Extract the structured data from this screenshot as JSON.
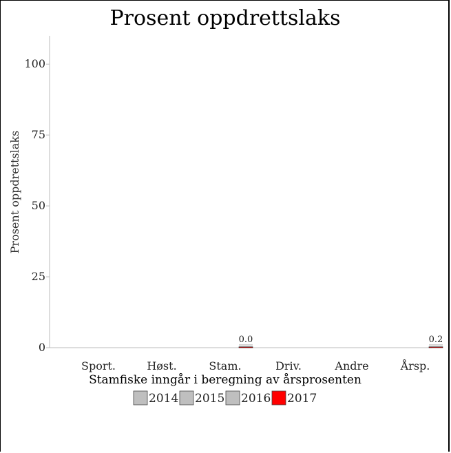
{
  "chart_data": {
    "type": "bar",
    "title": "Prosent oppdrettslaks",
    "ylabel": "Prosent oppdrettslaks",
    "caption": "Stamfiske inngår i beregning av årsprosenten",
    "categories": [
      "Sport.",
      "Høst.",
      "Stam.",
      "Driv.",
      "Andre",
      "Årsp."
    ],
    "ylim": [
      0,
      110
    ],
    "yticks": [
      0,
      25,
      50,
      75,
      100
    ],
    "series": [
      {
        "name": "2014",
        "color": "#bfbfbf",
        "values": [
          null,
          null,
          null,
          null,
          null,
          null
        ]
      },
      {
        "name": "2015",
        "color": "#bfbfbf",
        "values": [
          null,
          null,
          null,
          null,
          null,
          null
        ]
      },
      {
        "name": "2016",
        "color": "#bfbfbf",
        "values": [
          null,
          null,
          null,
          null,
          null,
          null
        ]
      },
      {
        "name": "2017",
        "color": "#ff0000",
        "values": [
          null,
          null,
          0.0,
          null,
          null,
          0.2
        ]
      }
    ],
    "data_labels": [
      {
        "category": "Stam.",
        "series": "2017",
        "text": "0.0"
      },
      {
        "category": "Årsp.",
        "series": "2017",
        "text": "0.2"
      }
    ],
    "legend": {
      "placement": "bottom",
      "items": [
        "2014",
        "2015",
        "2016",
        "2017"
      ]
    },
    "grid": false
  }
}
